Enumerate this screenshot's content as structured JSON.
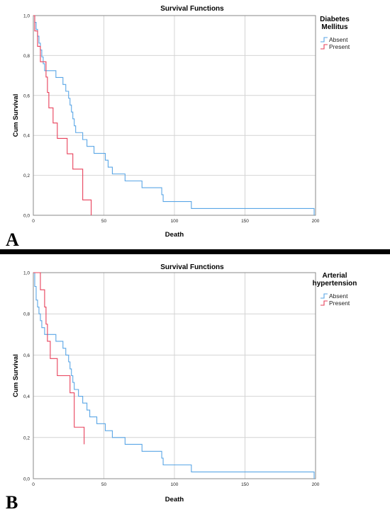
{
  "panels": [
    {
      "letter": "A",
      "legend_title_lines": [
        "Diabetes",
        "Mellitus"
      ],
      "chart_data": {
        "type": "line",
        "subtype": "step",
        "title": "Survival Functions",
        "xlabel": "Death",
        "ylabel": "Cum Survival",
        "xlim": [
          0,
          200
        ],
        "ylim": [
          0,
          1
        ],
        "xticks": [
          0,
          50,
          100,
          150,
          200
        ],
        "xtick_labels": [
          "0",
          "50",
          "100",
          "150",
          "200"
        ],
        "yticks": [
          0,
          0.2,
          0.4,
          0.6,
          0.8,
          1.0
        ],
        "ytick_labels": [
          "0,0",
          "0,2",
          "0,4",
          "0,6",
          "0,8",
          "1,0"
        ],
        "grid": true,
        "legend_position": "right",
        "series": [
          {
            "name": "Absent",
            "color": "#5aa6e6",
            "x": [
              0,
              1,
              2,
              3,
              4,
              5,
              6,
              7,
              8,
              10,
              16,
              21,
              23,
              25,
              26,
              27,
              28,
              29,
              30,
              31,
              32,
              33,
              35,
              38,
              43,
              45,
              51,
              53,
              56,
              60,
              65,
              77,
              91,
              92,
              112,
              199
            ],
            "y": [
              1.0,
              0.966,
              0.931,
              0.897,
              0.862,
              0.828,
              0.793,
              0.759,
              0.724,
              0.724,
              0.69,
              0.655,
              0.621,
              0.586,
              0.552,
              0.517,
              0.483,
              0.448,
              0.414,
              0.414,
              0.414,
              0.414,
              0.379,
              0.345,
              0.31,
              0.31,
              0.276,
              0.241,
              0.207,
              0.207,
              0.172,
              0.138,
              0.103,
              0.069,
              0.034,
              0.0
            ]
          },
          {
            "name": "Present",
            "color": "#e8405a",
            "x": [
              0,
              1,
              3,
              5,
              8,
              9,
              10,
              11,
              14,
              17,
              24,
              28,
              35,
              41
            ],
            "y": [
              1.0,
              0.923,
              0.846,
              0.769,
              0.769,
              0.692,
              0.615,
              0.538,
              0.462,
              0.385,
              0.308,
              0.231,
              0.077,
              0.0
            ]
          }
        ]
      }
    },
    {
      "letter": "B",
      "legend_title_lines": [
        "Arterial",
        "hypertension"
      ],
      "chart_data": {
        "type": "line",
        "subtype": "step",
        "title": "Survival Functions",
        "xlabel": "Death",
        "ylabel": "Cum Survival",
        "xlim": [
          0,
          200
        ],
        "ylim": [
          0,
          1
        ],
        "xticks": [
          0,
          50,
          100,
          150,
          200
        ],
        "xtick_labels": [
          "0",
          "50",
          "100",
          "150",
          "200"
        ],
        "yticks": [
          0,
          0.2,
          0.4,
          0.6,
          0.8,
          1.0
        ],
        "ytick_labels": [
          "0,0",
          "0,2",
          "0,4",
          "0,6",
          "0,8",
          "1,0"
        ],
        "grid": true,
        "legend_position": "right",
        "series": [
          {
            "name": "Absent",
            "color": "#5aa6e6",
            "x": [
              0,
              1,
              2,
              3,
              4,
              5,
              6,
              8,
              10,
              16,
              21,
              23,
              25,
              26,
              27,
              28,
              29,
              30,
              32,
              35,
              38,
              40,
              43,
              45,
              51,
              53,
              56,
              60,
              65,
              77,
              91,
              92,
              112,
              199
            ],
            "y": [
              1.0,
              0.933,
              0.867,
              0.833,
              0.8,
              0.767,
              0.733,
              0.7,
              0.7,
              0.667,
              0.633,
              0.6,
              0.567,
              0.533,
              0.5,
              0.467,
              0.433,
              0.433,
              0.4,
              0.367,
              0.333,
              0.3,
              0.3,
              0.267,
              0.233,
              0.233,
              0.2,
              0.2,
              0.167,
              0.133,
              0.1,
              0.067,
              0.033,
              0.0
            ]
          },
          {
            "name": "Present",
            "color": "#e8405a",
            "x": [
              0,
              3,
              5,
              8,
              9,
              10,
              12,
              17,
              26,
              29,
              36
            ],
            "y": [
              1.0,
              1.0,
              0.917,
              0.833,
              0.75,
              0.667,
              0.583,
              0.5,
              0.417,
              0.25,
              0.167
            ]
          }
        ]
      }
    }
  ]
}
